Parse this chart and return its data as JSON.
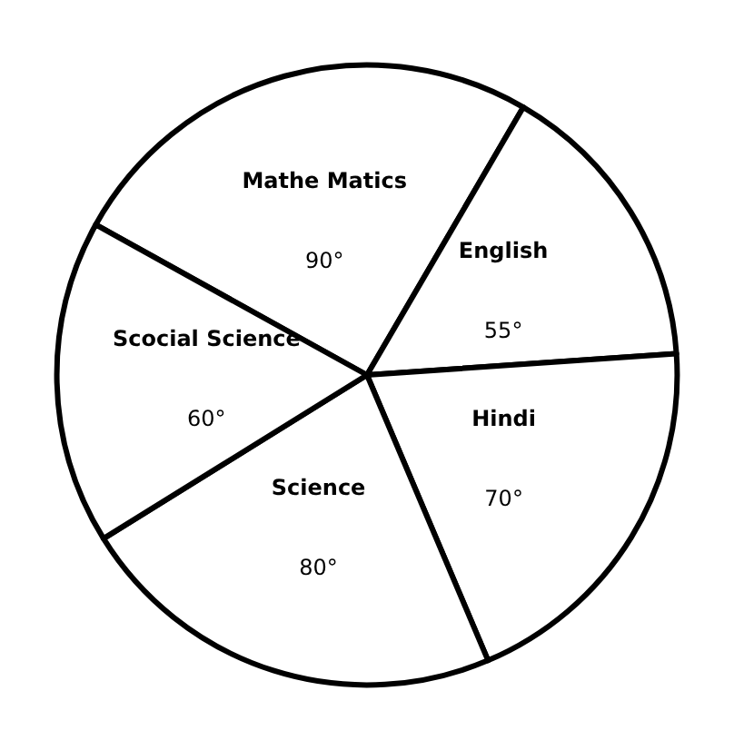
{
  "chart_data": {
    "type": "pie",
    "categories": [
      "Mathe Matics",
      "English",
      "Hindi",
      "Science",
      "Scocial Science"
    ],
    "values": [
      90,
      55,
      70,
      80,
      60
    ],
    "value_labels": [
      "90°",
      "55°",
      "70°",
      "80°",
      "60°"
    ],
    "colors": [
      "#ffffff",
      "#ffffff",
      "#ffffff",
      "#ffffff",
      "#ffffff"
    ],
    "legend": false
  }
}
